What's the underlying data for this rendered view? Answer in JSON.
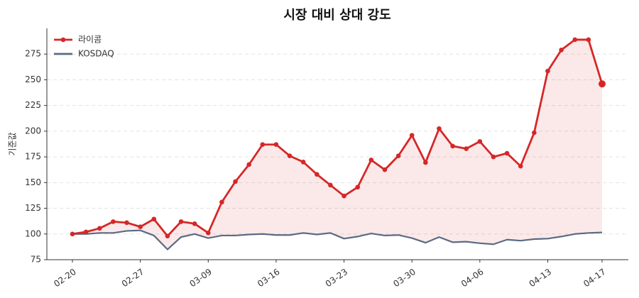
{
  "chart_data": {
    "type": "line",
    "title": "시장 대비 상대 강도",
    "ylabel": "기준값",
    "categories": [
      "02-20",
      null,
      null,
      null,
      null,
      "02-27",
      null,
      null,
      null,
      null,
      "03-09",
      null,
      null,
      null,
      null,
      "03-16",
      null,
      null,
      null,
      null,
      "03-23",
      null,
      null,
      null,
      null,
      "03-30",
      null,
      null,
      null,
      null,
      "04-06",
      null,
      null,
      null,
      null,
      "04-13",
      null,
      null,
      null,
      "04-17"
    ],
    "series": [
      {
        "name": "라이콤",
        "color": "#d62728",
        "markers": true,
        "highlight_last": true,
        "values": [
          100,
          102,
          105.5,
          112,
          111,
          107,
          114.5,
          98,
          112,
          110,
          101,
          131,
          151,
          167.5,
          187,
          187,
          176,
          170,
          158,
          147.5,
          137,
          145.5,
          172,
          162.5,
          176,
          196,
          169.5,
          202.5,
          185.5,
          183,
          190,
          175,
          178.5,
          166,
          198.5,
          258.5,
          279,
          289,
          289,
          246
        ]
      },
      {
        "name": "KOSDAQ",
        "color": "#5a6b85",
        "markers": false,
        "values": [
          100,
          100,
          101,
          101,
          103,
          103.5,
          98.5,
          85,
          97,
          100,
          96,
          98.5,
          98.5,
          99.5,
          100,
          99,
          99,
          101,
          99.5,
          101,
          95.5,
          97.5,
          100.5,
          98.5,
          99,
          96,
          91.5,
          97,
          92,
          92.5,
          91,
          90,
          94.5,
          93.5,
          95,
          95.5,
          97.5,
          100,
          101,
          101.5
        ]
      }
    ],
    "fill_between": true,
    "ylim": [
      75,
      300
    ],
    "yticks": [
      75,
      100,
      125,
      150,
      175,
      200,
      225,
      250,
      275
    ],
    "grid": true,
    "legend": "upper-left"
  }
}
